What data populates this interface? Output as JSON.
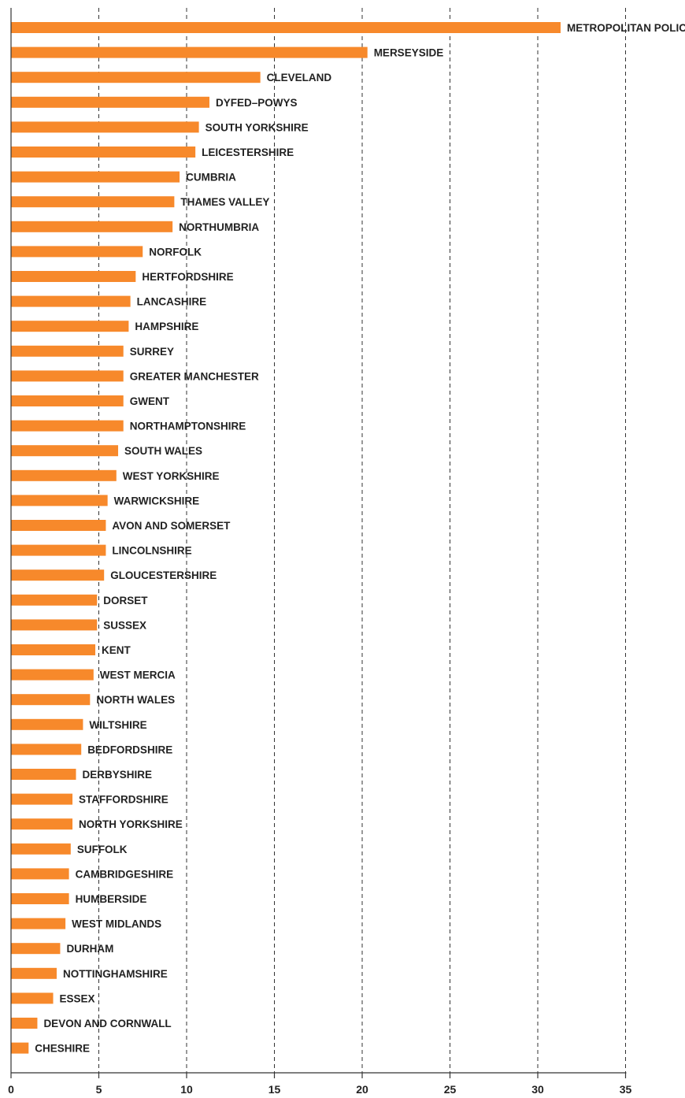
{
  "chart_data": {
    "type": "bar",
    "orientation": "horizontal",
    "title": "",
    "xlabel": "",
    "ylabel": "",
    "xlim": [
      0,
      35
    ],
    "xticks": [
      0,
      5,
      10,
      15,
      20,
      25,
      30,
      35
    ],
    "grid": "vertical dashed",
    "legend": "none",
    "bar_color": "#f7892b",
    "categories": [
      "METROPOLITAN POLICE",
      "MERSEYSIDE",
      "CLEVELAND",
      "DYFED–POWYS",
      "SOUTH YORKSHIRE",
      "LEICESTERSHIRE",
      "CUMBRIA",
      "THAMES VALLEY",
      "NORTHUMBRIA",
      "NORFOLK",
      "HERTFORDSHIRE",
      "LANCASHIRE",
      "HAMPSHIRE",
      "SURREY",
      "GREATER MANCHESTER",
      "GWENT",
      "NORTHAMPTONSHIRE",
      "SOUTH WALES",
      "WEST YORKSHIRE",
      "WARWICKSHIRE",
      "AVON AND SOMERSET",
      "LINCOLNSHIRE",
      "GLOUCESTERSHIRE",
      "DORSET",
      "SUSSEX",
      "KENT",
      "WEST MERCIA",
      "NORTH WALES",
      "WILTSHIRE",
      "BEDFORDSHIRE",
      "DERBYSHIRE",
      "STAFFORDSHIRE",
      "NORTH YORKSHIRE",
      "SUFFOLK",
      "CAMBRIDGESHIRE",
      "HUMBERSIDE",
      "WEST MIDLANDS",
      "DURHAM",
      "NOTTINGHAMSHIRE",
      "ESSEX",
      "DEVON AND CORNWALL",
      "CHESHIRE"
    ],
    "values": [
      31.3,
      20.3,
      14.2,
      11.3,
      10.7,
      10.5,
      9.6,
      9.3,
      9.2,
      7.5,
      7.1,
      6.8,
      6.7,
      6.4,
      6.4,
      6.4,
      6.4,
      6.1,
      6.0,
      5.5,
      5.4,
      5.4,
      5.3,
      4.9,
      4.9,
      4.8,
      4.7,
      4.5,
      4.1,
      4.0,
      3.7,
      3.5,
      3.5,
      3.4,
      3.3,
      3.3,
      3.1,
      2.8,
      2.6,
      2.4,
      1.5,
      1.0
    ]
  }
}
